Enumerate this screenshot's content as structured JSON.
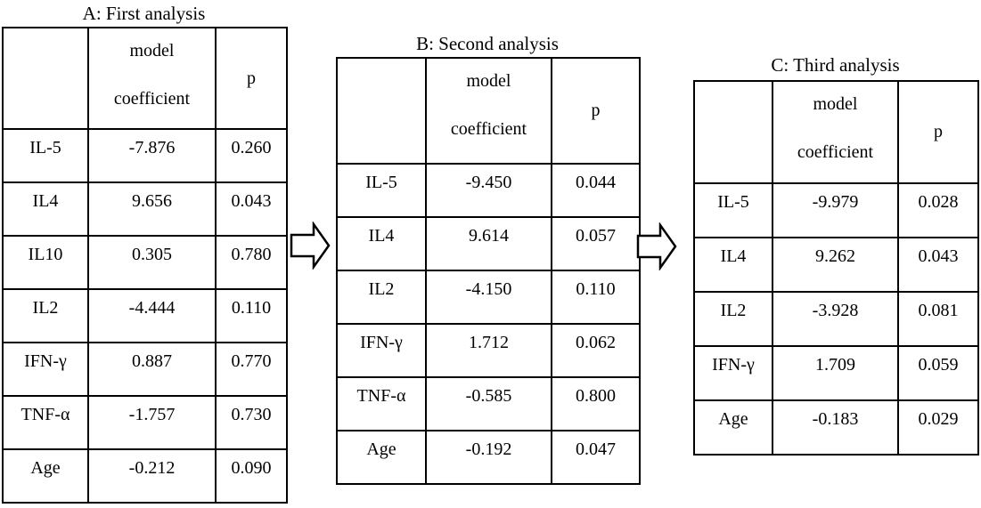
{
  "figure": {
    "background_color": "#ffffff",
    "line_color": "#000000",
    "text_color": "#000000"
  },
  "tables": [
    {
      "id": "A",
      "title": "A: First analysis",
      "header": {
        "label": "",
        "coefficient_line1": "model",
        "coefficient_line2": "coefficient",
        "p": "p"
      },
      "rows": [
        {
          "label": "IL-5",
          "coefficient": "-7.876",
          "p": "0.260"
        },
        {
          "label": "IL4",
          "coefficient": "9.656",
          "p": "0.043"
        },
        {
          "label": "IL10",
          "coefficient": "0.305",
          "p": "0.780"
        },
        {
          "label": "IL2",
          "coefficient": "-4.444",
          "p": "0.110"
        },
        {
          "label": "IFN-γ",
          "coefficient": "0.887",
          "p": "0.770"
        },
        {
          "label": "TNF-α",
          "coefficient": "-1.757",
          "p": "0.730"
        },
        {
          "label": "Age",
          "coefficient": "-0.212",
          "p": "0.090"
        }
      ]
    },
    {
      "id": "B",
      "title": "B: Second analysis",
      "header": {
        "label": "",
        "coefficient_line1": "model",
        "coefficient_line2": "coefficient",
        "p": "p"
      },
      "rows": [
        {
          "label": "IL-5",
          "coefficient": "-9.450",
          "p": "0.044"
        },
        {
          "label": "IL4",
          "coefficient": "9.614",
          "p": "0.057"
        },
        {
          "label": "IL2",
          "coefficient": "-4.150",
          "p": "0.110"
        },
        {
          "label": "IFN-γ",
          "coefficient": "1.712",
          "p": "0.062"
        },
        {
          "label": "TNF-α",
          "coefficient": "-0.585",
          "p": "0.800"
        },
        {
          "label": "Age",
          "coefficient": "-0.192",
          "p": "0.047"
        }
      ]
    },
    {
      "id": "C",
      "title": "C: Third analysis",
      "header": {
        "label": "",
        "coefficient_line1": "model",
        "coefficient_line2": "coefficient",
        "p": "p"
      },
      "rows": [
        {
          "label": "IL-5",
          "coefficient": "-9.979",
          "p": "0.028"
        },
        {
          "label": "IL4",
          "coefficient": "9.262",
          "p": "0.043"
        },
        {
          "label": "IL2",
          "coefficient": "-3.928",
          "p": "0.081"
        },
        {
          "label": "IFN-γ",
          "coefficient": "1.709",
          "p": "0.059"
        },
        {
          "label": "Age",
          "coefficient": "-0.183",
          "p": "0.029"
        }
      ]
    }
  ],
  "arrows": [
    {
      "name": "arrow-a-to-b",
      "icon": "right-block-arrow"
    },
    {
      "name": "arrow-b-to-c",
      "icon": "right-block-arrow"
    }
  ]
}
